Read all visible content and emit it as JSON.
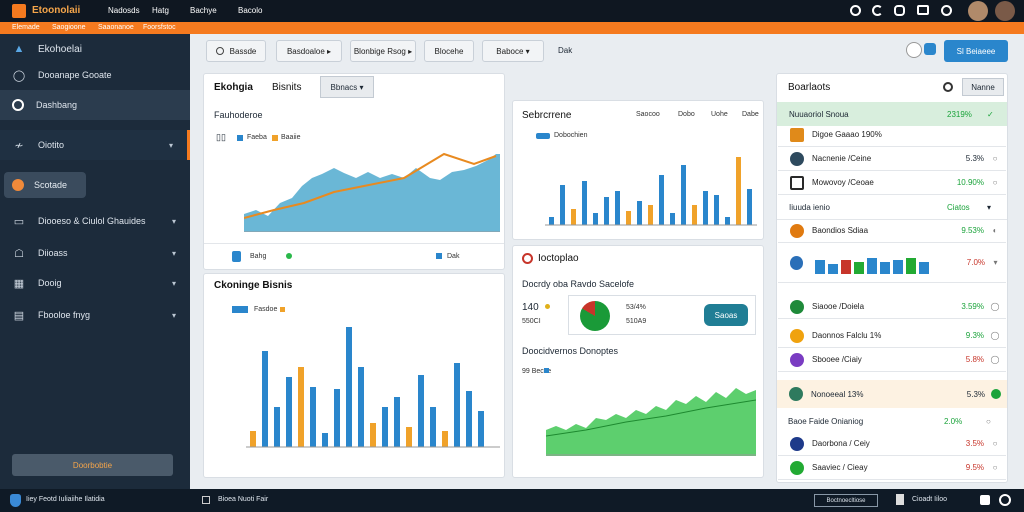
{
  "topbar": {
    "brand": "Etoonolaii",
    "menu": [
      "Nadosds",
      "Hatg",
      "Bachye",
      "Bacolo"
    ],
    "icons": [
      "target-icon",
      "refresh-icon",
      "chat-icon",
      "mail-icon",
      "user-icon",
      "avatar",
      "avatar"
    ]
  },
  "orange_strip": {
    "items": [
      "Elemade",
      "Saogioone",
      "Saaonanoe",
      "Foorsfstoc"
    ]
  },
  "sidebar": {
    "items": [
      {
        "label": "Ekohoelai",
        "icon": "building-icon"
      },
      {
        "label": "Dooanape Gooate",
        "icon": "shield-icon"
      },
      {
        "label": "Dashbang",
        "icon": "dial-icon"
      },
      {
        "label": "Oiotito",
        "icon": "pulse-icon"
      },
      {
        "label": "Scotade",
        "icon": "cookie-icon"
      },
      {
        "label": "Diooeso & Ciulol Ghauides",
        "icon": "monitor-icon"
      },
      {
        "label": "Diioass",
        "icon": "chat-icon"
      },
      {
        "label": "Dooig",
        "icon": "chart-icon"
      },
      {
        "label": "Fbooloe fnyg",
        "icon": "grid-icon"
      }
    ],
    "highlight": "Doorbobtie",
    "footer": "Iiey Feotd Iuliaiihe Ilatidia"
  },
  "toolbar": {
    "buttons": [
      "Bassde",
      "Basdoaloe",
      "Blonbige Rsog",
      "Blocehe",
      "Baboce",
      "Dak"
    ],
    "action": "Sl Beiaeee"
  },
  "left_top": {
    "title": "Ekohgia",
    "subtitle": "Bisnits",
    "dropdown": "Bbnacs",
    "chart_title": "Fauhoderoe",
    "legend": [
      "Faeba",
      "Baaiie"
    ],
    "footer_a": "Bahg",
    "footer_b": "Dak"
  },
  "left_bottom": {
    "title": "Ckoninge Bisnis",
    "legend": "Fasdoe"
  },
  "mid_top": {
    "title": "Sebrcrrene",
    "legend": "Dobochien",
    "tabs": [
      "Saocoo",
      "Dobo",
      "Uohe",
      "Dabe"
    ]
  },
  "mid_bottom": {
    "title": "Ioctoplao",
    "sub": "Docrdy oba Ravdo Sacelofe",
    "kpi": "140",
    "kpi_sub": "550CI",
    "pct": "53/4%",
    "pct_sub": "510A9",
    "button": "Saoas",
    "section": "Doocidvernos Donoptes",
    "legend": "99 Becve"
  },
  "right": {
    "title": "Boarlaots",
    "dropdown": "Nanne",
    "header": {
      "label": "Nuuaoriol Snoua",
      "value": "2319%"
    },
    "rows1": [
      {
        "label": "Digoe Gaaao 190%",
        "value": "",
        "color": "#e08a1a",
        "vc": "orangec"
      },
      {
        "label": "Nacnenie /Ceine",
        "value": "5.3%",
        "color": "#2e4a5e",
        "vc": ""
      },
      {
        "label": "Mowovoy /Ceoae",
        "value": "10.90%",
        "color": "#2a2a2a",
        "vc": "green"
      }
    ],
    "section2": "Iiuuda ienio",
    "section2_value": "Ciatos",
    "rows2": [
      {
        "label": "Baondios Sdiaa",
        "value": "9.53%",
        "color": "#e07a10",
        "vc": "green"
      },
      {
        "label": "",
        "value": "7.0%",
        "color": "#2a6fb8",
        "vc": "red"
      },
      {
        "label": "",
        "value": "",
        "color": "#1a9a38",
        "vc": ""
      },
      {
        "label": "Siaooe /Doiela",
        "value": "3.59%",
        "color": "#1f8a3a",
        "vc": "green"
      },
      {
        "label": "Daonnos Falclu 1%",
        "value": "9.3%",
        "color": "#f0a20e",
        "vc": "green"
      },
      {
        "label": "Sbooee /Ciaiy",
        "value": "5.8%",
        "color": "#7a3cc2",
        "vc": "red"
      }
    ],
    "highlight": {
      "label": "Nonoeeal 13%",
      "value": "5.3%"
    },
    "section3": "Baoe Faide Onianiog",
    "rows3": [
      {
        "label": "",
        "value": "2.0%",
        "color": "#2a4a6e",
        "vc": "green"
      },
      {
        "label": "Daorbona / Ceiy",
        "value": "3.5%",
        "color": "#1e3a8a",
        "vc": "red"
      },
      {
        "label": "Saaviec / Cieay",
        "value": "9.5%",
        "color": "#22aa33",
        "vc": "red"
      }
    ]
  },
  "bottom": {
    "left": "Bioea Nuoti Fair",
    "right_btn": "Boctnoecltiose",
    "right_text": "Cioadt Iiloo"
  },
  "colors": {
    "accent": "#f57a1f",
    "sidebar": "#1c2b3b",
    "blue": "#2a86cc",
    "teal": "#5fb4d6",
    "green": "#3cc06a",
    "orange": "#f0a22a"
  }
}
